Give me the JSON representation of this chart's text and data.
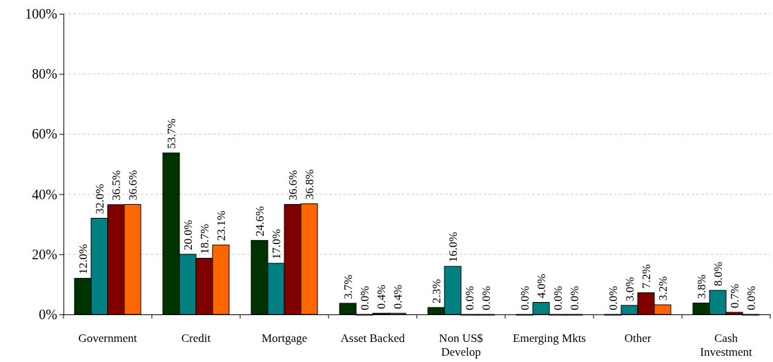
{
  "chart_data": {
    "type": "bar",
    "categories": [
      "Government",
      "Credit",
      "Mortgage",
      "Asset Backed",
      "Non US$\nDevelop",
      "Emerging Mkts",
      "Other",
      "Cash\nInvestment"
    ],
    "series": [
      {
        "color": "#003300",
        "values": [
          12.0,
          53.7,
          24.6,
          3.7,
          2.3,
          0.0,
          0.0,
          3.8
        ],
        "value_labels": [
          "12.0%",
          "53.7%",
          "24.6%",
          "3.7%",
          "2.3%",
          "0.0%",
          "0.0%",
          "3.8%"
        ]
      },
      {
        "color": "#008080",
        "values": [
          32.0,
          20.0,
          17.0,
          0.0,
          16.0,
          4.0,
          3.0,
          8.0
        ],
        "value_labels": [
          "32.0%",
          "20.0%",
          "17.0%",
          "0.0%",
          "16.0%",
          "4.0%",
          "3.0%",
          "8.0%"
        ]
      },
      {
        "color": "#800000",
        "values": [
          36.5,
          18.7,
          36.6,
          0.4,
          0.0,
          0.0,
          7.2,
          0.7
        ],
        "value_labels": [
          "36.5%",
          "18.7%",
          "36.6%",
          "0.4%",
          "0.0%",
          "0.0%",
          "7.2%",
          "0.7%"
        ]
      },
      {
        "color": "#ff6600",
        "values": [
          36.6,
          23.1,
          36.8,
          0.4,
          0.0,
          0.0,
          3.2,
          0.0
        ],
        "value_labels": [
          "36.6%",
          "23.1%",
          "36.8%",
          "0.4%",
          "0.0%",
          "0.0%",
          "3.2%",
          "0.0%"
        ]
      }
    ],
    "ylim": [
      0,
      100
    ],
    "yticks": [
      {
        "value": 0,
        "label": "0%"
      },
      {
        "value": 20,
        "label": "20%"
      },
      {
        "value": 40,
        "label": "40%"
      },
      {
        "value": 60,
        "label": "60%"
      },
      {
        "value": 80,
        "label": "80%"
      },
      {
        "value": 100,
        "label": "100%"
      }
    ],
    "grid": "y"
  }
}
